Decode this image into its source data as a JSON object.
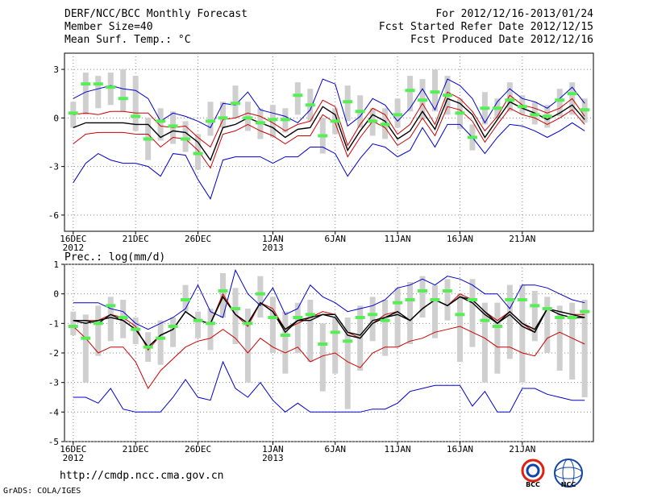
{
  "header": {
    "title": "DERF/NCC/BCC Monthly Forecast",
    "member_size": "Member Size=40",
    "variable": "Mean Surf. Temp.: °C",
    "period": "For 2012/12/16-2013/01/24",
    "started": "Fcst Started Refer Date 2012/12/15",
    "produced": "Fcst Produced Date 2012/12/16"
  },
  "footer": {
    "url": "http://cmdp.ncc.cma.gov.cn",
    "credit": "GrADS: COLA/IGES"
  },
  "logos": {
    "left": "BCC",
    "right": "NCC"
  },
  "colors": {
    "blue": "#0000cc",
    "red": "#cc0000",
    "green": "#55ee55",
    "box": "#cfcfcf",
    "grid": "#888888"
  },
  "chart_data": [
    {
      "type": "line",
      "title": "Mean Surf. Temp.: °C",
      "ylim": [
        -7,
        4
      ],
      "yticks": [
        -6,
        -3,
        0,
        3
      ],
      "xticks": [
        {
          "day": 1,
          "label": "16DEC",
          "sub": "2012"
        },
        {
          "day": 6,
          "label": "21DEC",
          "sub": ""
        },
        {
          "day": 11,
          "label": "26DEC",
          "sub": ""
        },
        {
          "day": 17,
          "label": "1JAN",
          "sub": "2013"
        },
        {
          "day": 22,
          "label": "6JAN",
          "sub": ""
        },
        {
          "day": 27,
          "label": "11JAN",
          "sub": ""
        },
        {
          "day": 32,
          "label": "16JAN",
          "sub": ""
        },
        {
          "day": 37,
          "label": "21JAN",
          "sub": ""
        }
      ],
      "series": [
        {
          "name": "upper",
          "color": "blue",
          "values": [
            1.2,
            1.6,
            1.8,
            2.0,
            1.8,
            1.7,
            1.2,
            -0.2,
            0.3,
            0.1,
            -0.2,
            -0.6,
            0.9,
            0.8,
            1.6,
            0.5,
            0.3,
            0.1,
            -0.3,
            0.5,
            2.4,
            2.1,
            -0.5,
            0.1,
            1.2,
            0.8,
            -0.2,
            0.6,
            1.8,
            0.5,
            2.4,
            2.0,
            1.2,
            -0.3,
            1.0,
            1.8,
            1.2,
            1.0,
            0.6,
            1.2,
            1.9,
            0.9
          ]
        },
        {
          "name": "upper-red",
          "color": "red",
          "values": [
            0.2,
            0.3,
            0.2,
            0.4,
            0.4,
            0.3,
            0.3,
            -0.5,
            -0.6,
            -0.5,
            -1.2,
            -1.8,
            -0.1,
            0.0,
            0.3,
            0.1,
            -0.3,
            -0.8,
            -0.4,
            -0.2,
            1.1,
            0.7,
            -1.7,
            -0.4,
            0.6,
            0.2,
            -1.0,
            -0.4,
            0.9,
            -0.4,
            1.6,
            1.2,
            0.4,
            -0.8,
            0.1,
            1.4,
            0.8,
            0.6,
            0.3,
            0.6,
            1.2,
            0.1
          ]
        },
        {
          "name": "mean",
          "color": "black",
          "values": [
            -0.6,
            -0.3,
            -0.3,
            -0.3,
            -0.3,
            -0.4,
            -0.4,
            -1.2,
            -0.8,
            -0.9,
            -1.5,
            -2.6,
            -0.6,
            -0.4,
            0.0,
            -0.3,
            -0.6,
            -1.2,
            -0.7,
            -0.6,
            0.7,
            0.2,
            -2.0,
            -0.8,
            0.2,
            -0.2,
            -1.3,
            -0.8,
            0.4,
            -0.7,
            1.2,
            0.9,
            0.2,
            -1.2,
            -0.1,
            1.0,
            0.6,
            0.3,
            -0.1,
            0.3,
            0.8,
            -0.1
          ]
        },
        {
          "name": "lower-red",
          "color": "red",
          "values": [
            -1.6,
            -1.0,
            -0.9,
            -0.9,
            -0.9,
            -1.0,
            -1.0,
            -1.8,
            -1.2,
            -1.3,
            -2.0,
            -3.1,
            -1.0,
            -0.8,
            -0.4,
            -0.8,
            -1.1,
            -1.6,
            -1.1,
            -1.1,
            0.2,
            -0.3,
            -2.4,
            -1.2,
            -0.2,
            -0.6,
            -1.7,
            -1.2,
            0.0,
            -1.1,
            0.7,
            0.5,
            -0.2,
            -1.5,
            -0.4,
            0.6,
            0.2,
            0.0,
            -0.4,
            0.0,
            0.5,
            -0.4
          ]
        },
        {
          "name": "lower",
          "color": "blue",
          "values": [
            -4.0,
            -2.8,
            -2.2,
            -2.6,
            -2.8,
            -2.8,
            -3.0,
            -3.6,
            -2.2,
            -2.3,
            -3.8,
            -5.0,
            -2.6,
            -2.4,
            -2.4,
            -2.4,
            -2.8,
            -2.4,
            -2.4,
            -1.8,
            -1.8,
            -2.2,
            -3.6,
            -2.5,
            -1.6,
            -1.8,
            -2.4,
            -2.0,
            -0.6,
            -1.8,
            -0.4,
            -0.4,
            -1.2,
            -2.2,
            -1.2,
            -0.4,
            -0.5,
            -0.8,
            -1.2,
            -0.8,
            -0.3,
            -0.8
          ]
        },
        {
          "name": "median",
          "color": "green",
          "marker": "dash",
          "values": [
            0.3,
            2.1,
            2.1,
            1.9,
            1.2,
            0.1,
            -1.3,
            -0.2,
            -0.5,
            -1.3,
            -2.2,
            -0.2,
            0.0,
            0.9,
            0.0,
            -0.3,
            -0.1,
            -0.1,
            1.4,
            0.8,
            -1.1,
            -0.2,
            1.0,
            0.4,
            -0.2,
            -0.4,
            0.2,
            1.7,
            1.1,
            1.6,
            1.4,
            0.3,
            -1.2,
            0.6,
            0.6,
            1.1,
            0.7,
            0.2,
            0.1,
            1.1,
            1.5,
            0.5
          ]
        }
      ],
      "box_low": [
        -0.6,
        0.2,
        0.6,
        0.8,
        0.4,
        -0.8,
        -2.6,
        -1.4,
        -1.6,
        -2.1,
        -3.2,
        -1.1,
        -0.6,
        0.0,
        -0.8,
        -1.3,
        -1.2,
        -0.9,
        0.2,
        -0.2,
        -2.2,
        -1.0,
        -0.2,
        -0.6,
        -1.1,
        -1.3,
        -0.6,
        0.4,
        -0.1,
        0.4,
        0.2,
        -0.7,
        -2.0,
        -0.4,
        0.0,
        0.4,
        0.2,
        -0.4,
        -0.6,
        0.1,
        0.2,
        -0.3
      ],
      "box_high": [
        1.0,
        2.8,
        2.6,
        2.8,
        3.0,
        2.6,
        0.0,
        0.6,
        0.4,
        -0.2,
        -1.0,
        1.0,
        1.0,
        2.0,
        1.0,
        0.6,
        0.8,
        0.6,
        2.2,
        1.8,
        0.0,
        0.6,
        2.0,
        1.4,
        0.6,
        0.6,
        1.2,
        2.6,
        2.4,
        3.0,
        2.6,
        1.2,
        -0.4,
        1.6,
        1.2,
        2.2,
        1.4,
        1.0,
        0.8,
        1.8,
        2.2,
        1.2
      ]
    },
    {
      "type": "line",
      "title": "Prec.: log(mm/d)",
      "ylim": [
        -5,
        1
      ],
      "yticks": [
        -5,
        -4,
        -3,
        -2,
        -1,
        0,
        1
      ],
      "xticks": [
        {
          "day": 1,
          "label": "16DEC",
          "sub": "2012"
        },
        {
          "day": 6,
          "label": "21DEC",
          "sub": ""
        },
        {
          "day": 11,
          "label": "26DEC",
          "sub": ""
        },
        {
          "day": 17,
          "label": "1JAN",
          "sub": "2013"
        },
        {
          "day": 22,
          "label": "6JAN",
          "sub": ""
        },
        {
          "day": 27,
          "label": "11JAN",
          "sub": ""
        },
        {
          "day": 32,
          "label": "16JAN",
          "sub": ""
        },
        {
          "day": 37,
          "label": "21JAN",
          "sub": ""
        }
      ],
      "series": [
        {
          "name": "upper",
          "color": "blue",
          "values": [
            -0.3,
            -0.3,
            -0.3,
            -0.5,
            -0.6,
            -1.0,
            -1.2,
            -1.0,
            -0.8,
            -0.5,
            0.3,
            -0.6,
            -0.8,
            0.8,
            0.0,
            -0.4,
            0.2,
            -0.7,
            -0.5,
            0.3,
            -0.1,
            -0.3,
            -0.6,
            -0.5,
            -0.4,
            -0.2,
            0.2,
            0.3,
            0.5,
            0.3,
            0.6,
            0.5,
            0.3,
            0.0,
            0.0,
            -0.5,
            0.3,
            0.3,
            0.2,
            0.0,
            -0.2,
            -0.3
          ]
        },
        {
          "name": "upper-red",
          "color": "red",
          "values": [
            -0.9,
            -0.9,
            -0.9,
            -0.7,
            -0.8,
            -1.1,
            -1.9,
            -1.4,
            -1.2,
            -0.6,
            -0.9,
            -1.0,
            0.0,
            -0.7,
            -1.1,
            -0.3,
            -0.5,
            -1.2,
            -1.0,
            -0.8,
            -0.6,
            -0.7,
            -1.3,
            -1.5,
            -1.0,
            -0.7,
            -0.6,
            -0.9,
            -0.5,
            -0.2,
            -0.4,
            0.0,
            -0.2,
            -0.6,
            -0.9,
            -0.6,
            -1.0,
            -1.3,
            -0.5,
            -0.6,
            -0.7,
            -0.7
          ]
        },
        {
          "name": "mean",
          "color": "black",
          "values": [
            -0.9,
            -1.0,
            -0.9,
            -0.8,
            -0.9,
            -1.2,
            -1.8,
            -1.4,
            -1.2,
            -0.6,
            -0.9,
            -1.0,
            -0.1,
            -0.7,
            -1.0,
            -0.3,
            -0.6,
            -1.3,
            -0.9,
            -0.9,
            -0.7,
            -0.8,
            -1.4,
            -1.5,
            -1.0,
            -0.8,
            -0.7,
            -0.9,
            -0.5,
            -0.2,
            -0.4,
            -0.1,
            -0.3,
            -0.7,
            -1.0,
            -0.7,
            -1.1,
            -1.3,
            -0.5,
            -0.7,
            -0.8,
            -0.8
          ]
        },
        {
          "name": "lower-red",
          "color": "red",
          "values": [
            -1.1,
            -1.5,
            -2.0,
            -1.8,
            -1.8,
            -2.3,
            -3.2,
            -2.6,
            -2.2,
            -1.8,
            -1.6,
            -1.5,
            -1.2,
            -1.5,
            -2.0,
            -1.5,
            -1.8,
            -2.0,
            -1.8,
            -2.3,
            -2.1,
            -2.0,
            -2.3,
            -2.5,
            -2.0,
            -1.8,
            -1.8,
            -1.6,
            -1.5,
            -1.3,
            -1.2,
            -1.1,
            -1.3,
            -1.5,
            -1.8,
            -1.8,
            -2.0,
            -2.1,
            -1.5,
            -1.3,
            -1.5,
            -1.7
          ]
        },
        {
          "name": "lower",
          "color": "blue",
          "values": [
            -3.5,
            -3.5,
            -3.7,
            -3.2,
            -3.9,
            -4.0,
            -4.0,
            -4.0,
            -3.5,
            -2.9,
            -3.5,
            -3.6,
            -2.3,
            -3.2,
            -3.5,
            -3.0,
            -3.6,
            -4.0,
            -3.7,
            -4.0,
            -4.0,
            -4.0,
            -4.0,
            -4.0,
            -3.9,
            -3.9,
            -3.7,
            -3.3,
            -3.2,
            -3.1,
            -3.1,
            -3.1,
            -3.8,
            -3.3,
            -4.0,
            -4.0,
            -3.2,
            -3.2,
            -3.4,
            -3.5,
            -3.6,
            -3.6
          ]
        },
        {
          "name": "median",
          "color": "green",
          "marker": "dash",
          "values": [
            -1.1,
            -1.5,
            -1.0,
            -0.4,
            -0.8,
            -1.2,
            -1.8,
            -1.5,
            -1.1,
            -0.2,
            -0.9,
            -1.0,
            0.1,
            -0.5,
            -1.0,
            0.0,
            -0.8,
            -1.4,
            -0.8,
            -0.7,
            -1.7,
            -1.3,
            -1.6,
            -0.8,
            -0.7,
            -0.9,
            -0.3,
            -0.2,
            0.1,
            -0.2,
            0.1,
            -0.7,
            -0.2,
            -0.9,
            -1.1,
            -0.2,
            -0.2,
            -0.4,
            -0.5,
            -0.8,
            -0.8,
            -0.6
          ]
        },
        {
          "name": "mean-alt",
          "color": "black",
          "values": [
            -0.9,
            -0.9,
            -1.0,
            -0.7,
            -0.9,
            -1.2,
            -1.8,
            -1.4,
            -1.2,
            -0.6,
            -0.9,
            -1.0,
            -0.1,
            -0.7,
            -1.0,
            -0.3,
            -0.6,
            -1.2,
            -0.9,
            -0.8,
            -0.7,
            -0.7,
            -1.3,
            -1.4,
            -0.9,
            -0.8,
            -0.6,
            -0.9,
            -0.5,
            -0.2,
            -0.4,
            -0.1,
            -0.2,
            -0.6,
            -1.0,
            -0.6,
            -1.0,
            -1.2,
            -0.5,
            -0.6,
            -0.7,
            -0.8
          ]
        }
      ],
      "box_low": [
        -1.4,
        -3.0,
        -2.1,
        -1.6,
        -1.5,
        -1.7,
        -2.3,
        -2.4,
        -1.8,
        -0.6,
        -1.5,
        -1.9,
        -0.8,
        -1.7,
        -3.0,
        -0.8,
        -2.0,
        -2.7,
        -2.0,
        -2.3,
        -3.3,
        -2.7,
        -3.9,
        -2.6,
        -1.6,
        -2.1,
        -1.8,
        -1.7,
        -0.8,
        -1.5,
        -0.9,
        -2.3,
        -1.8,
        -3.0,
        -2.7,
        -2.2,
        -3.0,
        -1.6,
        -2.0,
        -2.6,
        -2.9,
        -3.5
      ],
      "box_high": [
        -0.6,
        -0.7,
        -0.4,
        -0.1,
        -0.2,
        -0.8,
        -1.3,
        -0.9,
        -0.8,
        0.3,
        -0.6,
        -0.5,
        0.7,
        0.2,
        -0.5,
        0.6,
        -0.1,
        -0.6,
        -0.3,
        -0.2,
        -1.0,
        -0.8,
        -0.8,
        -0.4,
        -0.1,
        -0.2,
        0.2,
        0.4,
        0.6,
        0.3,
        0.5,
        0.0,
        0.5,
        -0.3,
        -0.3,
        0.3,
        0.3,
        0.1,
        -0.1,
        -0.4,
        -0.3,
        -0.2
      ]
    }
  ]
}
